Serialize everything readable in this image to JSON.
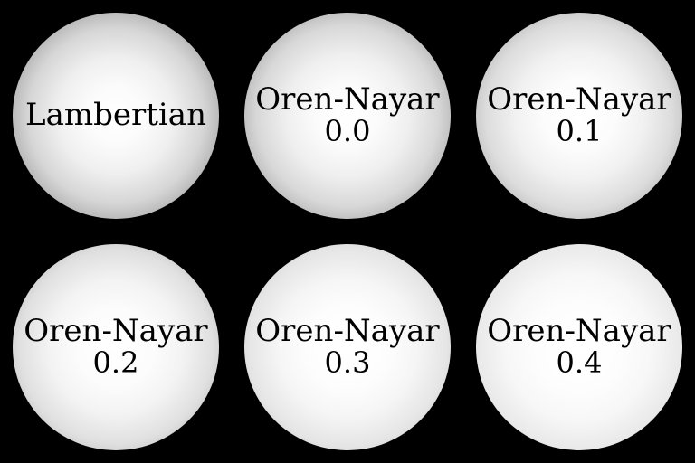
{
  "background_color": "#000000",
  "spheres": [
    {
      "name": "Lambertian",
      "value": ""
    },
    {
      "name": "Oren-Nayar",
      "value": "0.0"
    },
    {
      "name": "Oren-Nayar",
      "value": "0.1"
    },
    {
      "name": "Oren-Nayar",
      "value": "0.2"
    },
    {
      "name": "Oren-Nayar",
      "value": "0.3"
    },
    {
      "name": "Oren-Nayar",
      "value": "0.4"
    }
  ]
}
